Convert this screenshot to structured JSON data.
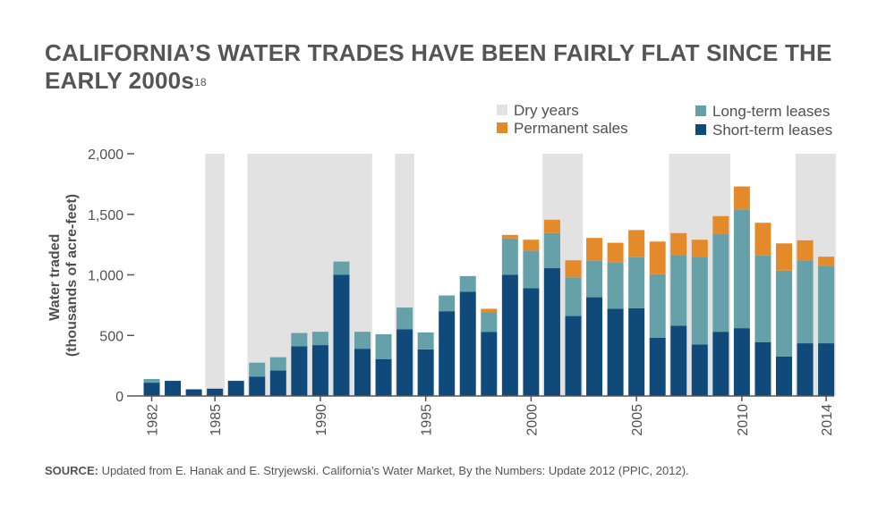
{
  "title": {
    "text": "CALIFORNIA’S WATER TRADES HAVE BEEN FAIRLY FLAT SINCE THE EARLY 2000s",
    "footnote": "18"
  },
  "source": {
    "label": "SOURCE:",
    "text": "Updated from E. Hanak and E. Stryjewski. California’s Water Market, By the Numbers: Update 2012 (PPIC, 2012)."
  },
  "colors": {
    "short_term": "#0f4a7a",
    "long_term": "#66a0a8",
    "permanent": "#e58a2a",
    "dry": "#e2e2e2",
    "axis": "#555555"
  },
  "chart_data": {
    "type": "bar",
    "stacked": true,
    "ylabel_lines": [
      "Water traded",
      "(thousands of acre-feet)"
    ],
    "xlabel": "",
    "ylim": [
      0,
      2000
    ],
    "yticks": [
      0,
      500,
      1000,
      1500,
      2000
    ],
    "ytick_labels": [
      "0",
      "500",
      "1,000",
      "1,500",
      "2,000"
    ],
    "xtick_labels": [
      1982,
      1985,
      1990,
      1995,
      2000,
      2005,
      2010,
      2014
    ],
    "categories": [
      1982,
      1983,
      1984,
      1985,
      1986,
      1987,
      1988,
      1989,
      1990,
      1991,
      1992,
      1993,
      1994,
      1995,
      1996,
      1997,
      1998,
      1999,
      2000,
      2001,
      2002,
      2003,
      2004,
      2005,
      2006,
      2007,
      2008,
      2009,
      2010,
      2011,
      2012,
      2013,
      2014
    ],
    "series": [
      {
        "name": "Short-term leases",
        "color": "#0f4a7a",
        "values": [
          110,
          125,
          55,
          60,
          125,
          160,
          210,
          410,
          420,
          1000,
          390,
          305,
          550,
          385,
          700,
          860,
          530,
          1000,
          890,
          1055,
          660,
          815,
          720,
          725,
          480,
          580,
          425,
          530,
          560,
          445,
          325,
          435,
          435
        ]
      },
      {
        "name": "Long-term leases",
        "color": "#66a0a8",
        "values": [
          30,
          0,
          0,
          0,
          0,
          115,
          110,
          110,
          110,
          110,
          140,
          205,
          180,
          140,
          130,
          130,
          160,
          300,
          310,
          290,
          320,
          305,
          385,
          420,
          525,
          585,
          725,
          805,
          980,
          715,
          710,
          685,
          640
        ]
      },
      {
        "name": "Permanent sales",
        "color": "#e58a2a",
        "values": [
          0,
          0,
          0,
          0,
          0,
          0,
          0,
          0,
          0,
          0,
          0,
          0,
          0,
          0,
          0,
          0,
          30,
          30,
          90,
          110,
          140,
          185,
          160,
          225,
          270,
          180,
          140,
          150,
          190,
          270,
          225,
          165,
          75
        ]
      }
    ],
    "dry_years": [
      [
        1985,
        1985
      ],
      [
        1987,
        1992
      ],
      [
        1994,
        1994
      ],
      [
        2001,
        2002
      ],
      [
        2007,
        2009
      ],
      [
        2013,
        2014
      ]
    ],
    "legend": {
      "placement": "top-right",
      "items": [
        {
          "label": "Dry years",
          "color": "#e2e2e2"
        },
        {
          "label": "Permanent sales",
          "color": "#e58a2a"
        },
        {
          "label": "Long-term leases",
          "color": "#66a0a8"
        },
        {
          "label": "Short-term leases",
          "color": "#0f4a7a"
        }
      ]
    },
    "grid": false
  }
}
